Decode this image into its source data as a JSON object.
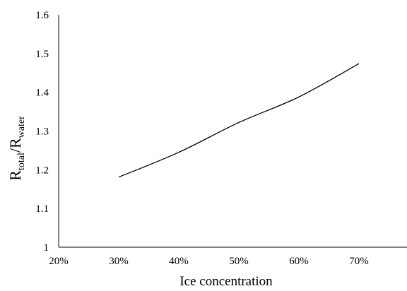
{
  "chart_data": {
    "type": "line",
    "title": "",
    "xlabel": "Ice concentration",
    "ylabel": {
      "base1": "R",
      "sub1": "total",
      "sep": "/",
      "base2": "R",
      "sub2": "water"
    },
    "xlim": [
      0.2,
      0.78
    ],
    "ylim": [
      1.0,
      1.6
    ],
    "x_ticks": [
      0.2,
      0.3,
      0.4,
      0.5,
      0.6,
      0.7
    ],
    "x_tick_labels": [
      "20%",
      "30%",
      "40%",
      "50%",
      "60%",
      "70%"
    ],
    "y_ticks": [
      1.0,
      1.1,
      1.2,
      1.3,
      1.4,
      1.5,
      1.6
    ],
    "y_tick_labels": [
      "1",
      "1.1",
      "1.2",
      "1.3",
      "1.4",
      "1.5",
      "1.6"
    ],
    "grid": false,
    "legend": "none",
    "series": [
      {
        "x": [
          0.3,
          0.4,
          0.5,
          0.6,
          0.7
        ],
        "y": [
          1.181,
          1.245,
          1.322,
          1.388,
          1.474
        ],
        "color": "#000000"
      }
    ]
  }
}
